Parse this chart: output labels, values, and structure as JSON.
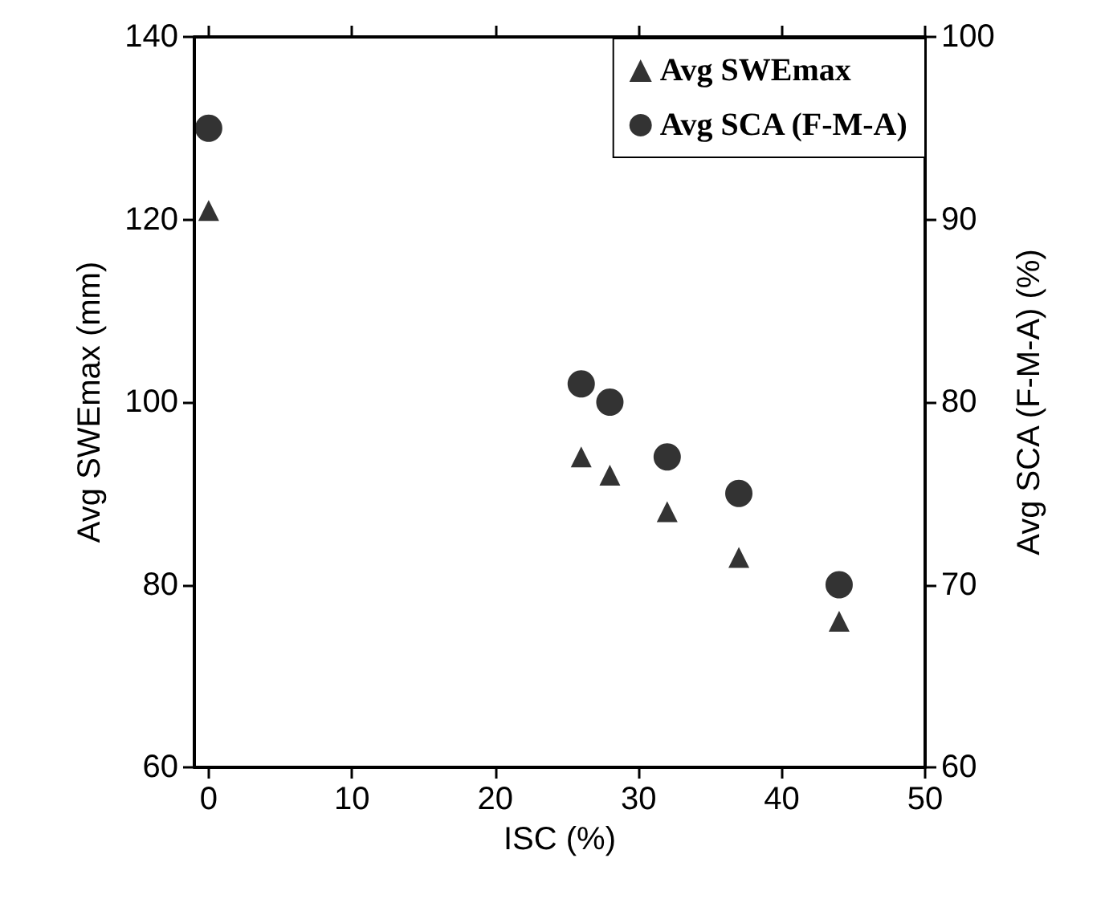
{
  "chart_data": {
    "type": "scatter",
    "xlabel": "ISC (%)",
    "ylabel": "Avg SWEmax (mm)",
    "y2label": "Avg SCA (F-M-A) (%)",
    "xlim": [
      -1,
      50
    ],
    "xticks": [
      0,
      10,
      20,
      30,
      40,
      50
    ],
    "ylim": [
      60,
      140
    ],
    "yticks": [
      60,
      80,
      100,
      120,
      140
    ],
    "y2lim": [
      60,
      100
    ],
    "y2ticks": [
      60,
      70,
      80,
      90,
      100
    ],
    "grid": false,
    "legend": "top right",
    "series": [
      {
        "name": "Avg SWEmax",
        "color": "#000000",
        "marker": "triangle",
        "x": [
          0,
          26,
          28,
          32,
          37,
          44
        ],
        "values": [
          121,
          94,
          92,
          88,
          83,
          76
        ]
      },
      {
        "name": "Avg SCA (F-M-A)",
        "color": "#000000",
        "marker": "circle",
        "axis": "y2",
        "x": [
          0,
          26,
          28,
          32,
          37,
          44
        ],
        "values": [
          95,
          81,
          80,
          77,
          75,
          70
        ]
      }
    ]
  }
}
